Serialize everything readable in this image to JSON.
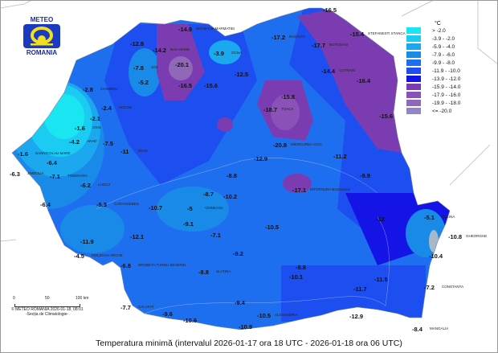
{
  "logo": {
    "top": "METEO",
    "bottom": "ROMANIA"
  },
  "legend": {
    "unit": "°C",
    "items": [
      {
        "label": "> -2.0",
        "color": "#19e6f0"
      },
      {
        "label": "-3.9 - -2.0",
        "color": "#1ccbf2"
      },
      {
        "label": "-5.9 - -4.0",
        "color": "#1ca8ee"
      },
      {
        "label": "-7.9 - -6.0",
        "color": "#1a8ae8"
      },
      {
        "label": "-9.9 - -8.0",
        "color": "#1e6ff0"
      },
      {
        "label": "-11.9 - -10.0",
        "color": "#1d4ef0"
      },
      {
        "label": "-13.9 - -12.0",
        "color": "#1414e6"
      },
      {
        "label": "-15.9 - -14.0",
        "color": "#7a3cb0"
      },
      {
        "label": "-17.9 - -16.0",
        "color": "#8a52b8"
      },
      {
        "label": "-19.9 - -18.0",
        "color": "#9068b8"
      },
      {
        "label": "<= -20.0",
        "color": "#9484c4"
      }
    ]
  },
  "scale": {
    "ticks": [
      "0",
      "50",
      "100 km"
    ],
    "credit": "© METEO ROMANIA 2026-01-18, 08:01",
    "section": "-Secția de Climatologie-"
  },
  "title": "Temperatura minimă (intervalul 2026-01-17 ora 18 UTC - 2026-01-18 ora 06 UTC)",
  "stations": [
    {
      "v": "-16.5",
      "n": ""
    },
    {
      "v": "-14.9",
      "n": "SIGHETUL MARMATIEI"
    },
    {
      "v": "-17.2",
      "n": "RADAUTI"
    },
    {
      "v": "-17.7",
      "n": "BOTOSANI"
    },
    {
      "v": "-15.4",
      "n": "STEFANESTI STANCA"
    },
    {
      "v": "-12.8",
      "n": ""
    },
    {
      "v": "-14.2",
      "n": "BAIA MARE"
    },
    {
      "v": "-3.9",
      "n": "OCNA"
    },
    {
      "v": "-20.1",
      "n": ""
    },
    {
      "v": "-7.8",
      "n": "JOS"
    },
    {
      "v": "-5.2",
      "n": ""
    },
    {
      "v": "-16.5",
      "n": ""
    },
    {
      "v": "-15.6",
      "n": ""
    },
    {
      "v": "-12.5",
      "n": ""
    },
    {
      "v": "-14.4",
      "n": "COTNARI"
    },
    {
      "v": "-16.4",
      "n": ""
    },
    {
      "v": "-15.8",
      "n": ""
    },
    {
      "v": "-18.7",
      "n": "TOACA"
    },
    {
      "v": "-20.8",
      "n": "MIERCUREA CIUC"
    },
    {
      "v": "-12.9",
      "n": ""
    },
    {
      "v": "-15.6",
      "n": ""
    },
    {
      "v": "-2.8",
      "n": "CHISINEU"
    },
    {
      "v": "-2.4",
      "n": "HOLOD"
    },
    {
      "v": "-2.1",
      "n": ""
    },
    {
      "v": "-1.6",
      "n": "CRIS"
    },
    {
      "v": "-4.2",
      "n": "ARAD"
    },
    {
      "v": "-1.6",
      "n": "SANNICOLAU MARE"
    },
    {
      "v": "-6.4",
      "n": ""
    },
    {
      "v": "-7.5",
      "n": ""
    },
    {
      "v": "-11",
      "n": "DEVA"
    },
    {
      "v": "-6.3",
      "n": "JIMBOLIA"
    },
    {
      "v": "-7.1",
      "n": "TIMISOARA"
    },
    {
      "v": "-6.2",
      "n": "LUGOJ"
    },
    {
      "v": "-6.4",
      "n": ""
    },
    {
      "v": "-5.3",
      "n": "CARANSEBES"
    },
    {
      "v": "-11.9",
      "n": ""
    },
    {
      "v": "-4.5",
      "n": "MOLDOVA VECHE"
    },
    {
      "v": "-6.8",
      "n": "DROBETA TURNU SEVERIN"
    },
    {
      "v": "-12.1",
      "n": ""
    },
    {
      "v": "-11.2",
      "n": ""
    },
    {
      "v": "-9.9",
      "n": ""
    },
    {
      "v": "-12",
      "n": ""
    },
    {
      "v": "-5.1",
      "n": "SULINA"
    },
    {
      "v": "-10.8",
      "n": "GHEORGHE"
    },
    {
      "v": "-10.4",
      "n": ""
    },
    {
      "v": "-7.2",
      "n": "CONSTANTA"
    },
    {
      "v": "-8.4",
      "n": "MANGALIA"
    },
    {
      "v": "-11.5",
      "n": ""
    },
    {
      "v": "-11.7",
      "n": ""
    },
    {
      "v": "-8.8",
      "n": ""
    },
    {
      "v": "-10.2",
      "n": ""
    },
    {
      "v": "-5",
      "n": "VOINEASA"
    },
    {
      "v": "-9.1",
      "n": ""
    },
    {
      "v": "-7.1",
      "n": ""
    },
    {
      "v": "-17.1",
      "n": "INTORSURA BUZAULUI"
    },
    {
      "v": "-10.5",
      "n": ""
    },
    {
      "v": "-9.2",
      "n": ""
    },
    {
      "v": "-8.7",
      "n": ""
    },
    {
      "v": "-9.8",
      "n": ""
    },
    {
      "v": "-10.1",
      "n": ""
    },
    {
      "v": "-7.7",
      "n": "CALAFAT"
    },
    {
      "v": "-9.6",
      "n": ""
    },
    {
      "v": "-10.6",
      "n": ""
    },
    {
      "v": "-9.4",
      "n": ""
    },
    {
      "v": "-10.5",
      "n": "ALEXANDRIA"
    },
    {
      "v": "-12.9",
      "n": ""
    },
    {
      "v": "-10.9",
      "n": ""
    },
    {
      "v": "-8.8",
      "n": "SLATINA"
    },
    {
      "v": "-10.7",
      "n": ""
    }
  ]
}
